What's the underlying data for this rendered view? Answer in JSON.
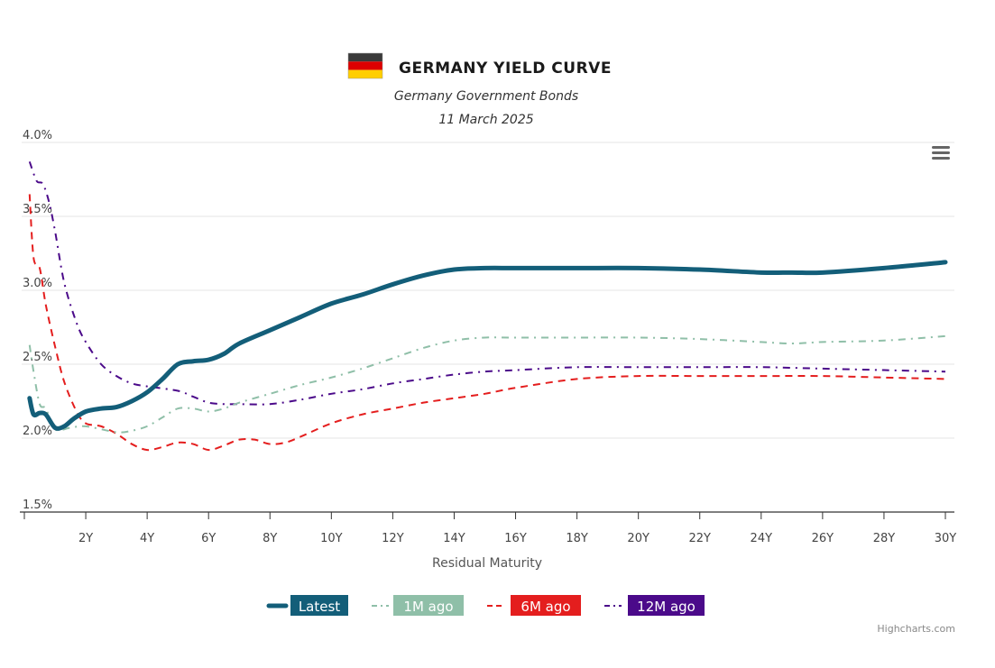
{
  "header": {
    "title": "GERMANY YIELD CURVE",
    "subtitle": "Germany Government Bonds",
    "date": "11 March 2025"
  },
  "menu": {
    "icon": "hamburger-menu-icon"
  },
  "credits": "Highcharts.com",
  "chart_data": {
    "type": "line",
    "title": "GERMANY YIELD CURVE",
    "subtitle": "Germany Government Bonds",
    "date": "11 March 2025",
    "xlabel": "Residual Maturity",
    "ylabel": "",
    "xlim": [
      0,
      30
    ],
    "ylim": [
      1.5,
      4.0
    ],
    "x_ticks": [
      {
        "value": 2,
        "label": "2Y"
      },
      {
        "value": 4,
        "label": "4Y"
      },
      {
        "value": 6,
        "label": "6Y"
      },
      {
        "value": 8,
        "label": "8Y"
      },
      {
        "value": 10,
        "label": "10Y"
      },
      {
        "value": 12,
        "label": "12Y"
      },
      {
        "value": 14,
        "label": "14Y"
      },
      {
        "value": 16,
        "label": "16Y"
      },
      {
        "value": 18,
        "label": "18Y"
      },
      {
        "value": 20,
        "label": "20Y"
      },
      {
        "value": 22,
        "label": "22Y"
      },
      {
        "value": 24,
        "label": "24Y"
      },
      {
        "value": 26,
        "label": "26Y"
      },
      {
        "value": 28,
        "label": "28Y"
      },
      {
        "value": 30,
        "label": "30Y"
      }
    ],
    "y_ticks": [
      {
        "value": 1.5,
        "label": "1.5%"
      },
      {
        "value": 2.0,
        "label": "2.0%"
      },
      {
        "value": 2.5,
        "label": "2.5%"
      },
      {
        "value": 3.0,
        "label": "3.0%"
      },
      {
        "value": 3.5,
        "label": "3.5%"
      },
      {
        "value": 4.0,
        "label": "4.0%"
      }
    ],
    "grid": "horizontal",
    "legend_position": "bottom-center",
    "series": [
      {
        "name": "Latest",
        "color": "#135e79",
        "dash": "solid",
        "points": [
          [
            0.17,
            2.27
          ],
          [
            0.3,
            2.16
          ],
          [
            0.5,
            2.17
          ],
          [
            0.7,
            2.16
          ],
          [
            1,
            2.07
          ],
          [
            1.3,
            2.08
          ],
          [
            1.6,
            2.13
          ],
          [
            2,
            2.18
          ],
          [
            2.5,
            2.2
          ],
          [
            3,
            2.21
          ],
          [
            3.5,
            2.25
          ],
          [
            4,
            2.31
          ],
          [
            4.5,
            2.4
          ],
          [
            5,
            2.5
          ],
          [
            5.5,
            2.52
          ],
          [
            6,
            2.53
          ],
          [
            6.5,
            2.57
          ],
          [
            7,
            2.64
          ],
          [
            8,
            2.73
          ],
          [
            9,
            2.82
          ],
          [
            10,
            2.91
          ],
          [
            11,
            2.97
          ],
          [
            12,
            3.04
          ],
          [
            13,
            3.1
          ],
          [
            14,
            3.14
          ],
          [
            15,
            3.15
          ],
          [
            16,
            3.15
          ],
          [
            18,
            3.15
          ],
          [
            20,
            3.15
          ],
          [
            22,
            3.14
          ],
          [
            24,
            3.12
          ],
          [
            25,
            3.12
          ],
          [
            26,
            3.12
          ],
          [
            28,
            3.15
          ],
          [
            30,
            3.19
          ]
        ]
      },
      {
        "name": "1M ago",
        "color": "#8fbfa8",
        "dash": "dashdot",
        "points": [
          [
            0.17,
            2.63
          ],
          [
            0.3,
            2.45
          ],
          [
            0.5,
            2.23
          ],
          [
            0.7,
            2.2
          ],
          [
            1,
            2.06
          ],
          [
            1.5,
            2.07
          ],
          [
            2,
            2.08
          ],
          [
            3,
            2.04
          ],
          [
            3.5,
            2.05
          ],
          [
            4,
            2.08
          ],
          [
            4.5,
            2.14
          ],
          [
            5,
            2.2
          ],
          [
            5.5,
            2.2
          ],
          [
            6,
            2.18
          ],
          [
            6.5,
            2.2
          ],
          [
            7,
            2.24
          ],
          [
            8,
            2.3
          ],
          [
            9,
            2.36
          ],
          [
            10,
            2.41
          ],
          [
            11,
            2.47
          ],
          [
            12,
            2.54
          ],
          [
            13,
            2.61
          ],
          [
            14,
            2.66
          ],
          [
            15,
            2.68
          ],
          [
            16,
            2.68
          ],
          [
            18,
            2.68
          ],
          [
            20,
            2.68
          ],
          [
            22,
            2.67
          ],
          [
            24,
            2.65
          ],
          [
            25,
            2.64
          ],
          [
            26,
            2.65
          ],
          [
            28,
            2.66
          ],
          [
            30,
            2.69
          ]
        ]
      },
      {
        "name": "6M ago",
        "color": "#e41e1e",
        "dash": "dashed",
        "points": [
          [
            0.17,
            3.65
          ],
          [
            0.3,
            3.22
          ],
          [
            0.5,
            3.15
          ],
          [
            0.7,
            2.9
          ],
          [
            1,
            2.62
          ],
          [
            1.3,
            2.38
          ],
          [
            1.7,
            2.18
          ],
          [
            2,
            2.1
          ],
          [
            2.5,
            2.08
          ],
          [
            3,
            2.03
          ],
          [
            3.5,
            1.96
          ],
          [
            4,
            1.92
          ],
          [
            4.5,
            1.94
          ],
          [
            5,
            1.97
          ],
          [
            5.5,
            1.96
          ],
          [
            6,
            1.92
          ],
          [
            6.5,
            1.95
          ],
          [
            7,
            1.99
          ],
          [
            7.5,
            1.99
          ],
          [
            8,
            1.96
          ],
          [
            8.5,
            1.97
          ],
          [
            9,
            2.01
          ],
          [
            10,
            2.1
          ],
          [
            11,
            2.16
          ],
          [
            12,
            2.2
          ],
          [
            13,
            2.24
          ],
          [
            14,
            2.27
          ],
          [
            15,
            2.3
          ],
          [
            16,
            2.34
          ],
          [
            18,
            2.4
          ],
          [
            20,
            2.42
          ],
          [
            22,
            2.42
          ],
          [
            24,
            2.42
          ],
          [
            26,
            2.42
          ],
          [
            28,
            2.41
          ],
          [
            30,
            2.4
          ]
        ]
      },
      {
        "name": "12M ago",
        "color": "#4b0a8a",
        "dash": "dashdot",
        "points": [
          [
            0.17,
            3.87
          ],
          [
            0.4,
            3.74
          ],
          [
            0.6,
            3.72
          ],
          [
            0.8,
            3.6
          ],
          [
            1,
            3.4
          ],
          [
            1.3,
            3.05
          ],
          [
            1.7,
            2.78
          ],
          [
            2,
            2.65
          ],
          [
            2.5,
            2.5
          ],
          [
            3,
            2.42
          ],
          [
            3.5,
            2.37
          ],
          [
            4,
            2.35
          ],
          [
            5,
            2.32
          ],
          [
            5.5,
            2.28
          ],
          [
            6,
            2.24
          ],
          [
            6.5,
            2.23
          ],
          [
            7,
            2.23
          ],
          [
            8,
            2.23
          ],
          [
            9,
            2.26
          ],
          [
            10,
            2.3
          ],
          [
            11,
            2.33
          ],
          [
            12,
            2.37
          ],
          [
            13,
            2.4
          ],
          [
            14,
            2.43
          ],
          [
            15,
            2.45
          ],
          [
            16,
            2.46
          ],
          [
            18,
            2.48
          ],
          [
            20,
            2.48
          ],
          [
            22,
            2.48
          ],
          [
            24,
            2.48
          ],
          [
            26,
            2.47
          ],
          [
            28,
            2.46
          ],
          [
            30,
            2.45
          ]
        ]
      }
    ]
  }
}
